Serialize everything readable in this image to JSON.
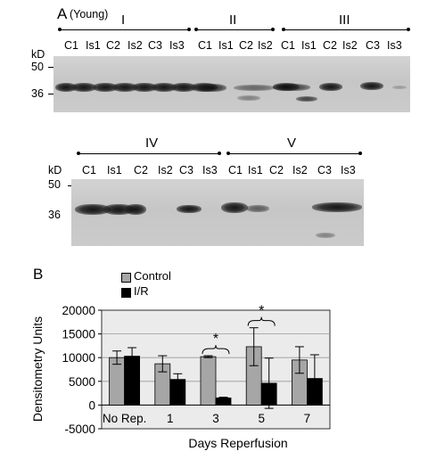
{
  "panelA": {
    "label": "A",
    "sublabel": "(Young)",
    "kd_label": "kD",
    "markers": [
      "50",
      "36"
    ],
    "row1": {
      "groups": [
        {
          "label": "I",
          "lanes": [
            "C1",
            "Is1",
            "C2",
            "Is2",
            "C3",
            "Is3"
          ]
        },
        {
          "label": "II",
          "lanes": [
            "C1",
            "Is1",
            "C2",
            "Is2"
          ]
        },
        {
          "label": "III",
          "lanes": [
            "C1",
            "Is1",
            "C2",
            "Is2",
            "C3",
            "Is3"
          ]
        }
      ]
    },
    "row2": {
      "groups": [
        {
          "label": "IV",
          "lanes": [
            "C1",
            "Is1",
            "C2",
            "Is2",
            "C3",
            "Is3"
          ]
        },
        {
          "label": "V",
          "lanes": [
            "C1",
            "Is1",
            "C2",
            "Is2",
            "C3",
            "Is3"
          ]
        }
      ]
    }
  },
  "panelB": {
    "label": "B",
    "legend": [
      "Control",
      "I/R"
    ],
    "colors": {
      "control": "#a6a6a6",
      "ir": "#000000",
      "plot_bg": "#ebebeb"
    },
    "significance_marker": "*"
  },
  "chart_data": {
    "type": "bar",
    "categories": [
      "No Rep.",
      "1",
      "3",
      "5",
      "7"
    ],
    "series": [
      {
        "name": "Control",
        "values": [
          10000,
          8700,
          10200,
          12300,
          9500
        ],
        "errors": [
          1400,
          1700,
          200,
          4000,
          2800
        ]
      },
      {
        "name": "I/R",
        "values": [
          10300,
          5400,
          1500,
          4600,
          5600
        ],
        "errors": [
          1800,
          1200,
          150,
          5300,
          5000
        ]
      }
    ],
    "ylabel": "Densitometry Units",
    "xlabel": "Days Reperfusion",
    "ylim": [
      -5000,
      20000
    ],
    "yticks": [
      "20000",
      "15000",
      "10000",
      "5000",
      "0",
      "-5000"
    ],
    "significant_categories": [
      "3",
      "5"
    ]
  }
}
